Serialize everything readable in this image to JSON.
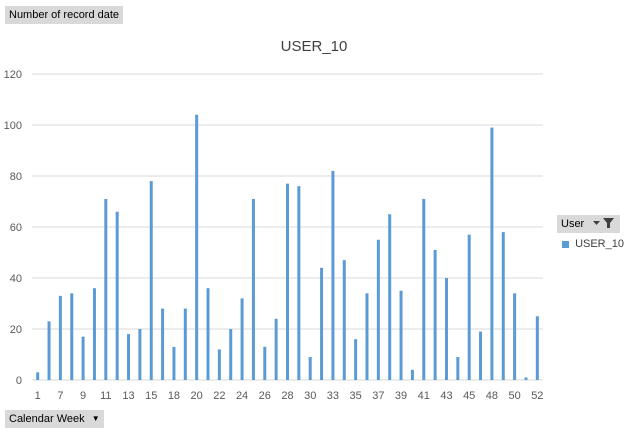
{
  "pivot": {
    "data_field": "Number of record date",
    "axis_field": "Calendar Week",
    "legend_field": "User"
  },
  "colors": {
    "series": "#5b9bd5",
    "grid": "#d9d9d9",
    "button": "#d9d9d9"
  },
  "icons": {
    "axis_dropdown": "chevron-down-icon",
    "legend_dropdown": "chevron-down-icon",
    "legend_filter": "filter-icon"
  },
  "chart_data": {
    "type": "bar",
    "title": "USER_10",
    "xlabel": "",
    "ylabel": "",
    "ylim": [
      0,
      120
    ],
    "yticks": [
      0,
      20,
      40,
      60,
      80,
      100,
      120
    ],
    "grid": true,
    "legend_position": "right",
    "categories": [
      "1",
      "2",
      "7",
      "8",
      "9",
      "10",
      "11",
      "12",
      "13",
      "14",
      "15",
      "17",
      "18",
      "19",
      "20",
      "21",
      "22",
      "23",
      "24",
      "25",
      "26",
      "27",
      "28",
      "29",
      "30",
      "31",
      "33",
      "34",
      "35",
      "36",
      "37",
      "38",
      "39",
      "40",
      "41",
      "42",
      "43",
      "44",
      "45",
      "46",
      "48",
      "49",
      "50",
      "51",
      "52"
    ],
    "tick_labels": [
      "1",
      "7",
      "9",
      "11",
      "13",
      "15",
      "18",
      "20",
      "22",
      "24",
      "26",
      "28",
      "30",
      "33",
      "35",
      "37",
      "39",
      "41",
      "43",
      "45",
      "48",
      "50",
      "52"
    ],
    "series": [
      {
        "name": "USER_10",
        "values": [
          3,
          23,
          33,
          34,
          17,
          36,
          71,
          66,
          18,
          20,
          78,
          28,
          13,
          28,
          104,
          36,
          12,
          20,
          32,
          71,
          13,
          24,
          77,
          76,
          9,
          44,
          82,
          47,
          16,
          34,
          55,
          65,
          35,
          4,
          71,
          51,
          40,
          9,
          57,
          19,
          99,
          58,
          34,
          1,
          25
        ]
      }
    ]
  }
}
